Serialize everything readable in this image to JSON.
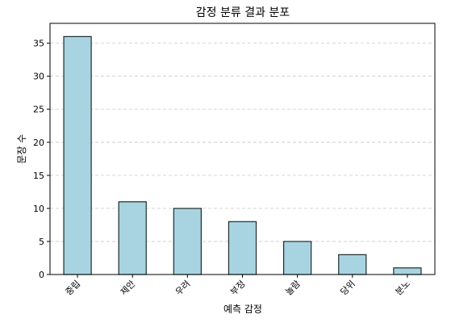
{
  "chart_data": {
    "type": "bar",
    "title": "감정 분류 결과 분포",
    "xlabel": "예측 감정",
    "ylabel": "문장 수",
    "categories": [
      "중립",
      "제안",
      "우려",
      "부정",
      "놀람",
      "당위",
      "분노"
    ],
    "values": [
      36,
      11,
      10,
      8,
      5,
      3,
      1
    ],
    "ylim": [
      0,
      38
    ],
    "yticks": [
      0,
      5,
      10,
      15,
      20,
      25,
      30,
      35
    ],
    "grid": "y-dashed",
    "bar_color": "#a8d4e2",
    "edge_color": "#1f2a2a"
  }
}
